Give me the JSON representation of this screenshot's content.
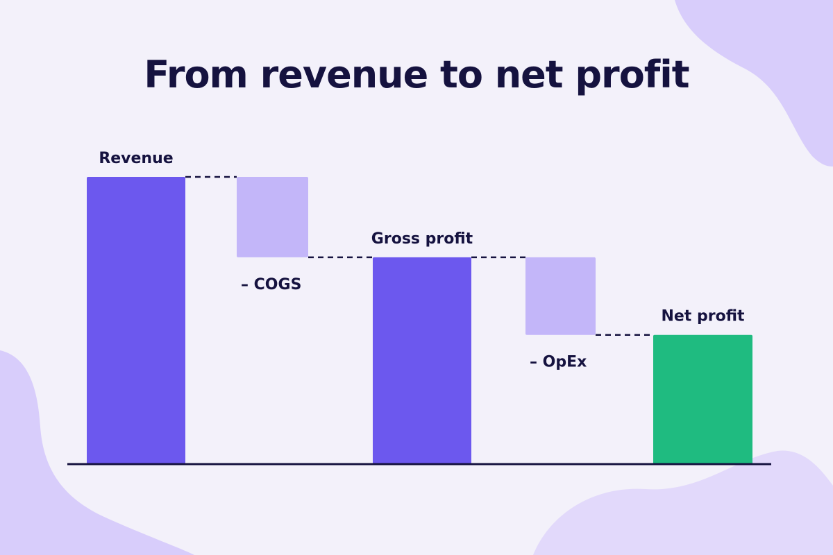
{
  "title": "From revenue to net profit",
  "colors": {
    "total": "#6c58ee",
    "decrease": "#c3b6f9",
    "net": "#1fbb80",
    "text": "#15123f",
    "background": "#f3f1fa",
    "blob": "#d8cdfb"
  },
  "chart_data": {
    "type": "bar",
    "subtype": "waterfall",
    "title": "From revenue to net profit",
    "xlabel": "",
    "ylabel": "",
    "grid": false,
    "legend": "none",
    "connectors": "dashed",
    "ylim": [
      0,
      100
    ],
    "steps": [
      {
        "label": "Revenue",
        "kind": "total",
        "value": 100,
        "label_position": "above"
      },
      {
        "label": "– COGS",
        "kind": "decrease",
        "value": -28,
        "label_position": "below"
      },
      {
        "label": "Gross profit",
        "kind": "total",
        "value": 72,
        "label_position": "above"
      },
      {
        "label": "– OpEx",
        "kind": "decrease",
        "value": -27,
        "label_position": "below"
      },
      {
        "label": "Net profit",
        "kind": "net",
        "value": 45,
        "label_position": "above"
      }
    ]
  }
}
